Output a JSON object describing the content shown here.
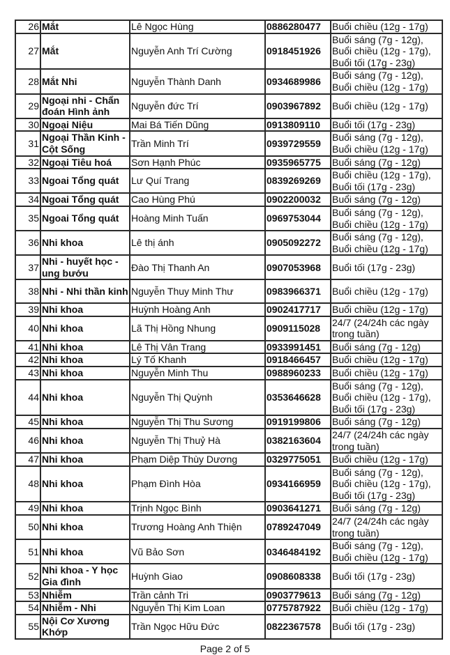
{
  "rows": [
    {
      "no": "26",
      "specialty": "Mắt",
      "doctor": "Lê Ngọc Hùng",
      "phone": "0886280477",
      "schedule": "Buổi chiều (12g - 17g)"
    },
    {
      "no": "27",
      "specialty": "Mắt",
      "doctor": "Nguyễn Anh Trí Cường",
      "phone": "0918451926",
      "schedule": "Buổi sáng (7g - 12g), Buổi chiều (12g - 17g), Buổi tối (17g - 23g)"
    },
    {
      "no": "28",
      "specialty": "Mắt Nhi",
      "doctor": "Nguyễn Thành Danh",
      "phone": "0934689986",
      "schedule": "Buổi sáng (7g - 12g), Buổi chiều (12g - 17g)"
    },
    {
      "no": "29",
      "specialty": "Ngoại nhi - Chẩn đoán Hình ảnh",
      "doctor": "Nguyễn đức Trí",
      "phone": "0903967892",
      "schedule": "Buổi chiều (12g - 17g)"
    },
    {
      "no": "30",
      "specialty": "Ngoại Niệu",
      "doctor": "Mai Bá Tiến Dũng",
      "phone": "0913809110",
      "schedule": "Buổi tối (17g - 23g)"
    },
    {
      "no": "31",
      "specialty": "Ngoại Thần Kinh - Cột Sống",
      "doctor": "Trần Minh Trí",
      "phone": "0939729559",
      "schedule": "Buổi sáng (7g - 12g), Buổi chiều (12g - 17g)"
    },
    {
      "no": "32",
      "specialty": "Ngoại Tiêu hoá",
      "doctor": "Sơn Hạnh Phúc",
      "phone": "0935965775",
      "schedule": "Buổi sáng (7g - 12g)"
    },
    {
      "no": "33",
      "specialty": "Ngoai Tổng quát",
      "doctor": "Lư Quí Trang",
      "phone": "0839269269",
      "schedule": "Buổi chiều (12g - 17g), Buổi tối (17g - 23g)"
    },
    {
      "no": "34",
      "specialty": "Ngoai Tổng quát",
      "doctor": "Cao Hùng Phú",
      "phone": "0902200032",
      "schedule": "Buổi sáng (7g - 12g)"
    },
    {
      "no": "35",
      "specialty": "Ngoai Tổng quát",
      "doctor": "Hoàng Minh Tuấn",
      "phone": "0969753044",
      "schedule": "Buổi sáng (7g - 12g), Buổi chiều (12g - 17g)"
    },
    {
      "no": "36",
      "specialty": "Nhi khoa",
      "doctor": "Lê thị ánh",
      "phone": "0905092272",
      "schedule": "Buổi sáng (7g - 12g), Buổi chiều (12g - 17g)"
    },
    {
      "no": "37",
      "specialty": "Nhi - huyết học - ung bướu",
      "doctor": "Đào Thị Thanh An",
      "phone": "0907053968",
      "schedule": "Buổi tối (17g - 23g)"
    },
    {
      "no": "38",
      "specialty": "Nhi - Nhi thần kinh",
      "doctor": "Nguyễn Thuy Minh Thư",
      "phone": "0983966371",
      "schedule": "Buổi chiều (12g - 17g)"
    },
    {
      "no": "39",
      "specialty": "Nhi khoa",
      "doctor": "Huỳnh Hoàng Anh",
      "phone": "0902417717",
      "schedule": "Buổi chiều (12g - 17g)"
    },
    {
      "no": "40",
      "specialty": "Nhi khoa",
      "doctor": "Lã Thị Hồng Nhung",
      "phone": "0909115028",
      "schedule": "24/7 (24/24h các ngày trong tuần)"
    },
    {
      "no": "41",
      "specialty": "Nhi khoa",
      "doctor": "Lê Thị Vân Trang",
      "phone": "0933991451",
      "schedule": "Buổi sáng (7g - 12g)"
    },
    {
      "no": "42",
      "specialty": "Nhi khoa",
      "doctor": "Lý Tố Khanh",
      "phone": "0918466457",
      "schedule": "Buổi chiều (12g - 17g)"
    },
    {
      "no": "43",
      "specialty": "Nhi khoa",
      "doctor": "Nguyễn Minh Thu",
      "phone": "0988960233",
      "schedule": "Buổi chiều (12g - 17g)"
    },
    {
      "no": "44",
      "specialty": "Nhi khoa",
      "doctor": "Nguyễn Thị Quỳnh",
      "phone": "0353646628",
      "schedule": "Buổi sáng (7g - 12g), Buổi chiều (12g - 17g), Buổi tối (17g - 23g)"
    },
    {
      "no": "45",
      "specialty": "Nhi khoa",
      "doctor": "Nguyễn Thị Thu Sương",
      "phone": "0919199806",
      "schedule": "Buổi sáng (7g - 12g)"
    },
    {
      "no": "46",
      "specialty": "Nhi khoa",
      "doctor": "Nguyễn Thị Thuỷ Hà",
      "phone": "0382163604",
      "schedule": "24/7 (24/24h các ngày trong tuần)"
    },
    {
      "no": "47",
      "specialty": "Nhi khoa",
      "doctor": "Phạm Diệp Thùy Dương",
      "phone": "0329775051",
      "schedule": "Buổi chiều (12g - 17g)"
    },
    {
      "no": "48",
      "specialty": "Nhi khoa",
      "doctor": "Phạm Đình Hòa",
      "phone": "0934166959",
      "schedule": "Buổi sáng (7g - 12g), Buổi chiều (12g - 17g), Buổi tối (17g - 23g)"
    },
    {
      "no": "49",
      "specialty": "Nhi khoa",
      "doctor": "Trịnh Ngọc Bình",
      "phone": "0903641271",
      "schedule": "Buổi sáng (7g - 12g)"
    },
    {
      "no": "50",
      "specialty": "Nhi khoa",
      "doctor": "Trương Hoàng Anh Thiện",
      "phone": "0789247049",
      "schedule": "24/7 (24/24h các ngày trong tuần)"
    },
    {
      "no": "51",
      "specialty": "Nhi khoa",
      "doctor": "Vũ Bảo Sơn",
      "phone": "0346484192",
      "schedule": "Buổi sáng (7g - 12g), Buổi chiều (12g - 17g)"
    },
    {
      "no": "52",
      "specialty": "Nhi khoa - Y học Gia đình",
      "doctor": "Huỳnh Giao",
      "phone": "0908608338",
      "schedule": "Buổi tối (17g - 23g)"
    },
    {
      "no": "53",
      "specialty": "Nhiễm",
      "doctor": "Trần cảnh Tri",
      "phone": "0903779613",
      "schedule": "Buổi sáng (7g - 12g)"
    },
    {
      "no": "54",
      "specialty": "Nhiễm - Nhi",
      "doctor": "Nguyễn Thị Kim Loan",
      "phone": "0775787922",
      "schedule": "Buổi chiều (12g - 17g)"
    },
    {
      "no": "55",
      "specialty": "Nội Cơ Xương Khớp",
      "doctor": "Trần Ngọc Hữu Đức",
      "phone": "0822367578",
      "schedule": "Buổi tối (17g - 23g)"
    }
  ],
  "footer": {
    "page_label": "Page 2 of 5"
  }
}
